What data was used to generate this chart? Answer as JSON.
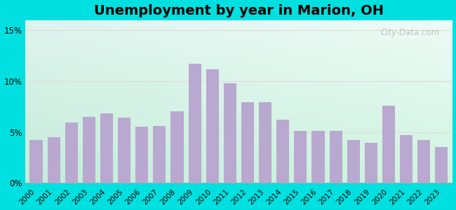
{
  "title": "Unemployment by year in Marion, OH",
  "years": [
    2000,
    2001,
    2002,
    2003,
    2004,
    2005,
    2006,
    2007,
    2008,
    2009,
    2010,
    2011,
    2012,
    2013,
    2014,
    2015,
    2016,
    2017,
    2018,
    2019,
    2020,
    2021,
    2022,
    2023
  ],
  "values": [
    4.2,
    4.5,
    5.9,
    6.5,
    6.8,
    6.4,
    5.5,
    5.6,
    7.0,
    11.7,
    11.2,
    9.8,
    7.9,
    7.9,
    6.2,
    5.1,
    5.1,
    5.1,
    4.2,
    3.9,
    7.6,
    4.7,
    4.2,
    3.5
  ],
  "bar_color": "#b9a8d0",
  "ylim": [
    0,
    16
  ],
  "yticks": [
    0,
    5,
    10,
    15
  ],
  "ytick_labels": [
    "0%",
    "5%",
    "10%",
    "15%"
  ],
  "outer_background": "#00e0e0",
  "title_fontsize": 14,
  "watermark_text": "City-Data.com",
  "grid_color": "#dddddd"
}
